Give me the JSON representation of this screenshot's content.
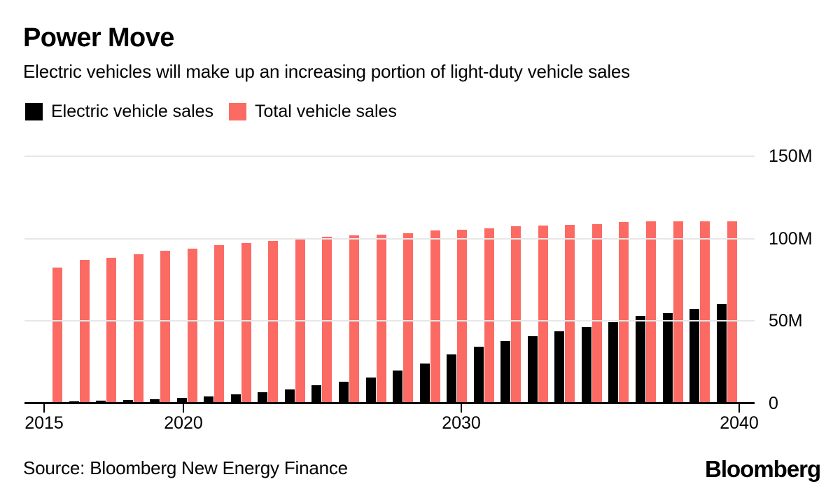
{
  "header": {
    "title": "Power Move",
    "subtitle": "Electric vehicles will make up an increasing portion of light-duty vehicle sales"
  },
  "legend": [
    {
      "label": "Electric vehicle sales",
      "color": "#000000"
    },
    {
      "label": "Total vehicle sales",
      "color": "#fb6b64"
    }
  ],
  "chart_data": {
    "type": "bar",
    "title": "Power Move",
    "subtitle": "Electric vehicles will make up an increasing portion of light-duty vehicle sales",
    "categories": [
      2015,
      2016,
      2017,
      2018,
      2019,
      2020,
      2021,
      2022,
      2023,
      2024,
      2025,
      2026,
      2027,
      2028,
      2029,
      2030,
      2031,
      2032,
      2033,
      2034,
      2035,
      2036,
      2037,
      2038,
      2039,
      2040
    ],
    "series": [
      {
        "name": "Electric vehicle sales",
        "color": "#000000",
        "values": [
          0.4,
          0.8,
          1.2,
          1.7,
          2.2,
          3,
          4,
          5,
          6.3,
          8,
          10.7,
          12.6,
          15.5,
          19.5,
          24,
          29.5,
          34,
          37.5,
          40.5,
          43.5,
          45.8,
          49,
          52.5,
          54.5,
          57,
          60
        ]
      },
      {
        "name": "Total vehicle sales",
        "color": "#fb6b64",
        "values": [
          82,
          86.5,
          88,
          90,
          92,
          93.5,
          95.5,
          97,
          98,
          99.5,
          100.5,
          101.5,
          102,
          103,
          104.5,
          105,
          106,
          107,
          107.5,
          108,
          108.5,
          109.5,
          110,
          110,
          110,
          110
        ]
      }
    ],
    "xlabel": "",
    "ylabel": "",
    "ylim": [
      0,
      150
    ],
    "y_ticks": [
      {
        "value": 0,
        "label": "0"
      },
      {
        "value": 50,
        "label": "50M"
      },
      {
        "value": 100,
        "label": "100M"
      },
      {
        "value": 150,
        "label": "150M"
      }
    ],
    "x_ticks": [
      {
        "year": 2015,
        "label": "2015"
      },
      {
        "year": 2020,
        "label": "2020"
      },
      {
        "year": 2030,
        "label": "2030"
      },
      {
        "year": 2040,
        "label": "2040"
      }
    ],
    "grid": "horizontal",
    "grid_color": "#e7e7e7",
    "legend_position": "top-left",
    "y_axis_side": "right"
  },
  "footer": {
    "source": "Source: Bloomberg New Energy Finance",
    "brand": "Bloomberg"
  }
}
